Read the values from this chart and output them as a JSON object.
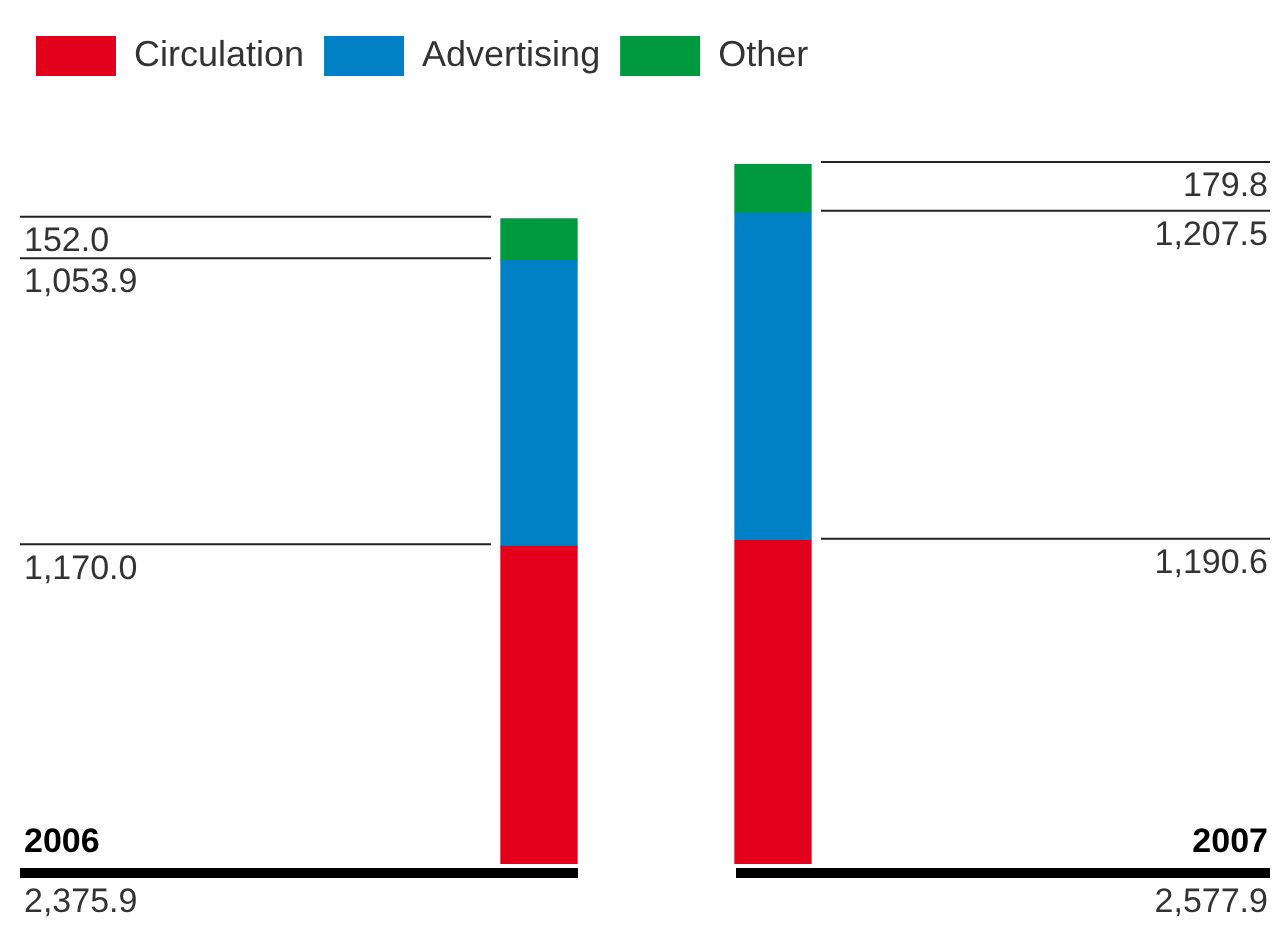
{
  "chart_data": {
    "type": "bar",
    "stacked": true,
    "categories": [
      "2006",
      "2007"
    ],
    "series": [
      {
        "name": "Circulation",
        "color": "#e2001a",
        "values": [
          1170.0,
          1190.6
        ],
        "value_labels": [
          "1,170.0",
          "1,190.6"
        ]
      },
      {
        "name": "Advertising",
        "color": "#0081c6",
        "values": [
          1053.9,
          1207.5
        ],
        "value_labels": [
          "1,053.9",
          "1,207.5"
        ]
      },
      {
        "name": "Other",
        "color": "#009a3e",
        "values": [
          152.0,
          179.8
        ],
        "value_labels": [
          "152.0",
          "179.8"
        ]
      }
    ],
    "annotations": [
      "2,375.9",
      "2,577.9"
    ],
    "legend": "top left"
  }
}
